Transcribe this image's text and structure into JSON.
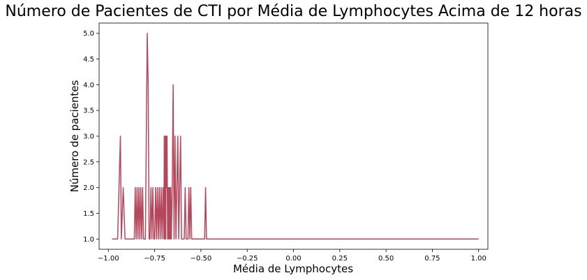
{
  "chart_data": {
    "type": "line",
    "title": "Número de Pacientes de CTI por Média de Lymphocytes Acima de 12 horas",
    "xlabel": "Média de Lymphocytes",
    "ylabel": "Número de pacientes",
    "xlim": [
      -1.05,
      1.05
    ],
    "ylim": [
      0.8,
      5.2
    ],
    "xticks": [
      -1.0,
      -0.75,
      -0.5,
      -0.25,
      0.0,
      0.25,
      0.5,
      0.75,
      1.0
    ],
    "xtick_labels": [
      "−1.00",
      "−0.75",
      "−0.50",
      "−0.25",
      "0.00",
      "0.25",
      "0.50",
      "0.75",
      "1.00"
    ],
    "yticks": [
      1.0,
      1.5,
      2.0,
      2.5,
      3.0,
      3.5,
      4.0,
      4.5,
      5.0
    ],
    "ytick_labels": [
      "1.0",
      "1.5",
      "2.0",
      "2.5",
      "3.0",
      "3.5",
      "4.0",
      "4.5",
      "5.0"
    ],
    "grid": false,
    "line_color": "#b5475c",
    "series": [
      {
        "x": [
          -0.98,
          -0.95,
          -0.935,
          -0.93,
          -0.92,
          -0.91,
          -0.9,
          -0.86,
          -0.855,
          -0.85,
          -0.845,
          -0.84,
          -0.835,
          -0.83,
          -0.825,
          -0.82,
          -0.815,
          -0.81,
          -0.8,
          -0.79,
          -0.785,
          -0.78,
          -0.775,
          -0.77,
          -0.765,
          -0.76,
          -0.755,
          -0.75,
          -0.745,
          -0.74,
          -0.735,
          -0.73,
          -0.725,
          -0.72,
          -0.715,
          -0.71,
          -0.705,
          -0.7,
          -0.698,
          -0.695,
          -0.693,
          -0.69,
          -0.688,
          -0.685,
          -0.683,
          -0.68,
          -0.678,
          -0.675,
          -0.673,
          -0.67,
          -0.668,
          -0.665,
          -0.663,
          -0.66,
          -0.655,
          -0.65,
          -0.645,
          -0.64,
          -0.635,
          -0.63,
          -0.625,
          -0.62,
          -0.615,
          -0.61,
          -0.605,
          -0.6,
          -0.59,
          -0.585,
          -0.58,
          -0.57,
          -0.565,
          -0.56,
          -0.555,
          -0.55,
          -0.545,
          -0.54,
          -0.48,
          -0.475,
          -0.47,
          -0.465,
          1.0
        ],
        "y": [
          1,
          1,
          3,
          1,
          2,
          1,
          1,
          1,
          2,
          1,
          2,
          1,
          2,
          1,
          2,
          1,
          2,
          1,
          1,
          5,
          4,
          1,
          1,
          2,
          1,
          2,
          1,
          1,
          2,
          1,
          2,
          1,
          2,
          1,
          2,
          1,
          2,
          1,
          3,
          1,
          3,
          1,
          3,
          2,
          3,
          1,
          2,
          1,
          2,
          1,
          2,
          1,
          2,
          1,
          2,
          4,
          1,
          3,
          1,
          2,
          3,
          1,
          2,
          3,
          1,
          1,
          1,
          2,
          1,
          1,
          2,
          1,
          2,
          1,
          1,
          1,
          1,
          2,
          1,
          1,
          1
        ]
      }
    ]
  }
}
